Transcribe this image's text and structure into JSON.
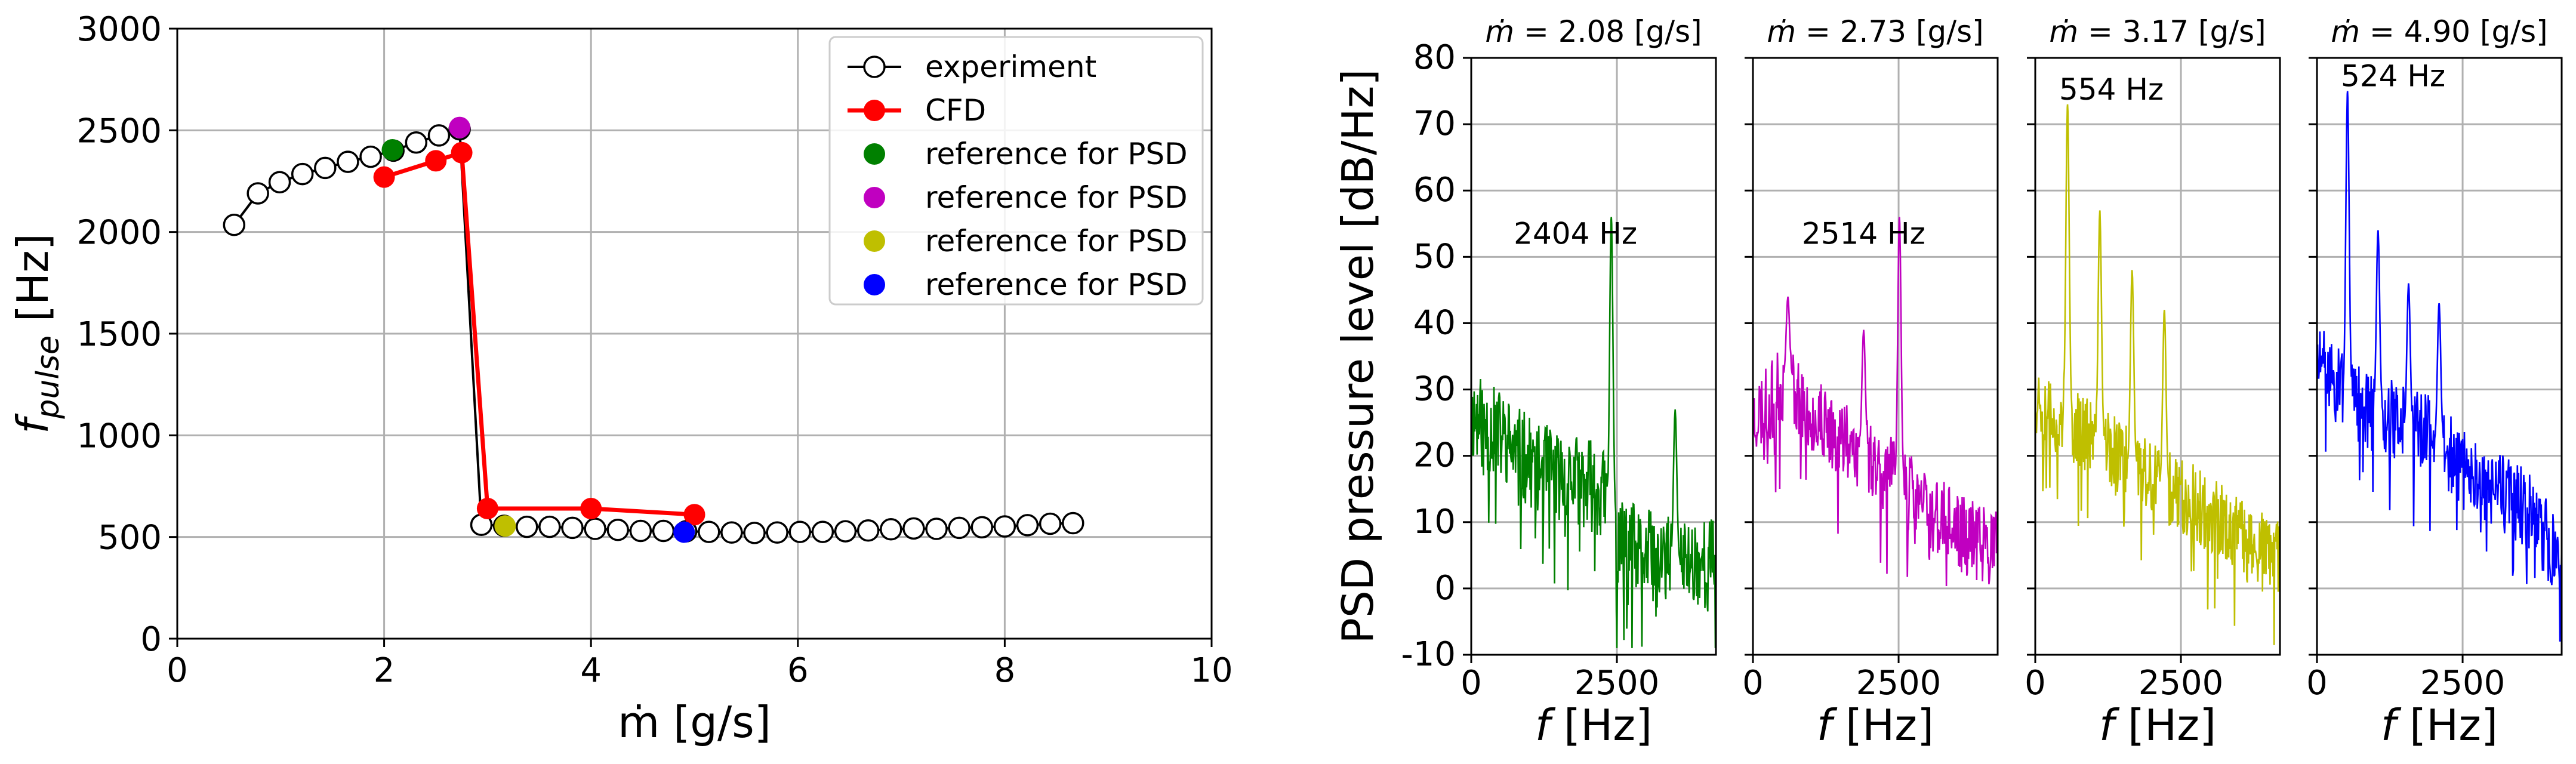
{
  "chart_data": [
    {
      "type": "line",
      "title": "",
      "xlabel": "ṁ [g/s]",
      "ylabel": "f pulse [Hz]",
      "ylabel_main": "f",
      "ylabel_sub": "pulse",
      "ylabel_unit": " [Hz]",
      "xlim": [
        0,
        10
      ],
      "ylim": [
        0,
        3000
      ],
      "xticks": [
        0,
        2,
        4,
        6,
        8,
        10
      ],
      "yticks": [
        0,
        500,
        1000,
        1500,
        2000,
        2500,
        3000
      ],
      "grid": true,
      "legend": "top-right",
      "series": [
        {
          "name": "experiment",
          "color": "#000000",
          "marker": "open-circle",
          "x": [
            0.55,
            0.78,
            0.99,
            1.21,
            1.43,
            1.65,
            1.87,
            2.09,
            2.31,
            2.53,
            2.73,
            2.94,
            3.16,
            3.38,
            3.6,
            3.82,
            4.04,
            4.26,
            4.48,
            4.7,
            4.92,
            5.14,
            5.36,
            5.58,
            5.8,
            6.02,
            6.24,
            6.46,
            6.68,
            6.9,
            7.12,
            7.34,
            7.56,
            7.78,
            8.0,
            8.22,
            8.44,
            8.66
          ],
          "y": [
            2035,
            2190,
            2245,
            2285,
            2315,
            2345,
            2370,
            2400,
            2440,
            2475,
            2505,
            560,
            555,
            550,
            550,
            545,
            540,
            535,
            530,
            530,
            528,
            525,
            522,
            520,
            522,
            525,
            525,
            528,
            532,
            538,
            542,
            540,
            545,
            548,
            552,
            558,
            565,
            568
          ]
        },
        {
          "name": "CFD",
          "color": "#ff0000",
          "marker": "filled-circle",
          "x": [
            2.0,
            2.5,
            2.75,
            3.0,
            4.0,
            5.0
          ],
          "y": [
            2270,
            2350,
            2390,
            640,
            640,
            610
          ]
        }
      ],
      "reference_points": [
        {
          "name": "reference for PSD",
          "color": "#008000",
          "x": 2.08,
          "y": 2404
        },
        {
          "name": "reference for PSD",
          "color": "#c000c0",
          "x": 2.73,
          "y": 2514
        },
        {
          "name": "reference for PSD",
          "color": "#bfbf00",
          "x": 3.17,
          "y": 554
        },
        {
          "name": "reference for PSD",
          "color": "#0000ff",
          "x": 4.9,
          "y": 524
        }
      ]
    },
    {
      "type": "line",
      "ylabel": "PSD pressure level [dB/Hz]",
      "xlabel_main": "f",
      "xlabel_unit": " [Hz]",
      "xlim": [
        0,
        4200
      ],
      "ylim": [
        -10,
        80
      ],
      "xticks": [
        0,
        2500
      ],
      "yticks": [
        -10,
        0,
        10,
        20,
        30,
        40,
        50,
        60,
        70,
        80
      ],
      "grid": true,
      "panels": [
        {
          "title_prefix": "ṁ =",
          "title_value": "2.08 [g/s]",
          "color": "#008000",
          "annotation": "2404 Hz",
          "peak_hz": 2404,
          "peak_db": 56,
          "base": [
            [
              0,
              26
            ],
            [
              500,
              23
            ],
            [
              1000,
              19
            ],
            [
              1500,
              17
            ],
            [
              2000,
              16
            ],
            [
              2300,
              14
            ],
            [
              2500,
              7
            ],
            [
              3000,
              5
            ],
            [
              3500,
              4
            ],
            [
              4200,
              4
            ]
          ],
          "extra_peaks": [
            [
              3500,
              27
            ]
          ],
          "seed": 11,
          "noise": 7
        },
        {
          "title_prefix": "ṁ =",
          "title_value": "2.73 [g/s]",
          "color": "#c000c0",
          "annotation": "2514 Hz",
          "peak_hz": 2514,
          "peak_db": 56,
          "base": [
            [
              0,
              26
            ],
            [
              300,
              28
            ],
            [
              600,
              32
            ],
            [
              900,
              27
            ],
            [
              1300,
              24
            ],
            [
              1800,
              22
            ],
            [
              2200,
              18
            ],
            [
              2500,
              16
            ],
            [
              3000,
              12
            ],
            [
              3600,
              8
            ],
            [
              4200,
              6
            ]
          ],
          "extra_peaks": [
            [
              600,
              44
            ],
            [
              1900,
              39
            ]
          ],
          "seed": 23,
          "noise": 6
        },
        {
          "title_prefix": "ṁ =",
          "title_value": "3.17 [g/s]",
          "color": "#bfbf00",
          "annotation": "554 Hz",
          "peak_hz": 554,
          "peak_db": 73,
          "base": [
            [
              0,
              29
            ],
            [
              400,
              27
            ],
            [
              800,
              24
            ],
            [
              1200,
              21
            ],
            [
              1600,
              19
            ],
            [
              2000,
              16
            ],
            [
              2400,
              15
            ],
            [
              3000,
              11
            ],
            [
              3600,
              7
            ],
            [
              4200,
              4
            ]
          ],
          "extra_peaks": [
            [
              1108,
              57
            ],
            [
              1662,
              48
            ],
            [
              2216,
              42
            ]
          ],
          "seed": 37,
          "noise": 6
        },
        {
          "title_prefix": "ṁ =",
          "title_value": "4.90 [g/s]",
          "color": "#0000ff",
          "annotation": "524 Hz",
          "peak_hz": 524,
          "peak_db": 75,
          "base": [
            [
              0,
              34
            ],
            [
              400,
              30
            ],
            [
              800,
              27
            ],
            [
              1200,
              26
            ],
            [
              1600,
              24
            ],
            [
              2000,
              23
            ],
            [
              2400,
              19
            ],
            [
              3000,
              15
            ],
            [
              3600,
              12
            ],
            [
              4200,
              4
            ]
          ],
          "extra_peaks": [
            [
              1048,
              54
            ],
            [
              1572,
              46
            ],
            [
              2096,
              43
            ]
          ],
          "seed": 51,
          "noise": 6
        }
      ]
    }
  ]
}
